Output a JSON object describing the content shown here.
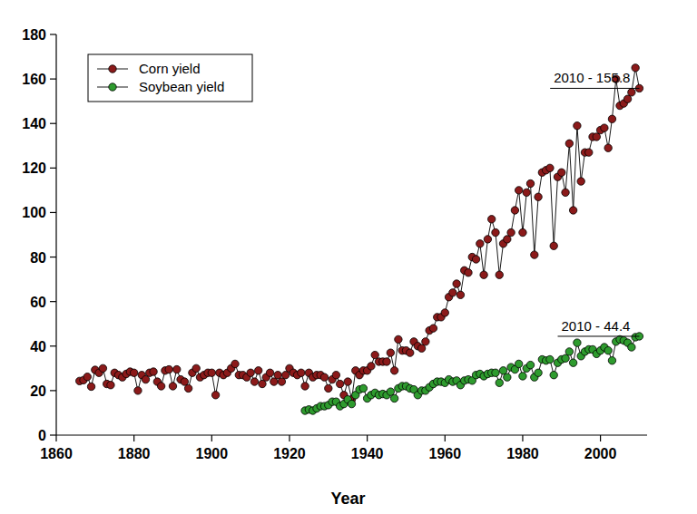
{
  "chart_data": {
    "type": "line",
    "x_label": "Year",
    "x": [
      1866,
      1867,
      1868,
      1869,
      1870,
      1871,
      1872,
      1873,
      1874,
      1875,
      1876,
      1877,
      1878,
      1879,
      1880,
      1881,
      1882,
      1883,
      1884,
      1885,
      1886,
      1887,
      1888,
      1889,
      1890,
      1891,
      1892,
      1893,
      1894,
      1895,
      1896,
      1897,
      1898,
      1899,
      1900,
      1901,
      1902,
      1903,
      1904,
      1905,
      1906,
      1907,
      1908,
      1909,
      1910,
      1911,
      1912,
      1913,
      1914,
      1915,
      1916,
      1917,
      1918,
      1919,
      1920,
      1921,
      1922,
      1923,
      1924,
      1925,
      1926,
      1927,
      1928,
      1929,
      1930,
      1931,
      1932,
      1933,
      1934,
      1935,
      1936,
      1937,
      1938,
      1939,
      1940,
      1941,
      1942,
      1943,
      1944,
      1945,
      1946,
      1947,
      1948,
      1949,
      1950,
      1951,
      1952,
      1953,
      1954,
      1955,
      1956,
      1957,
      1958,
      1959,
      1960,
      1961,
      1962,
      1963,
      1964,
      1965,
      1966,
      1967,
      1968,
      1969,
      1970,
      1971,
      1972,
      1973,
      1974,
      1975,
      1976,
      1977,
      1978,
      1979,
      1980,
      1981,
      1982,
      1983,
      1984,
      1985,
      1986,
      1987,
      1988,
      1989,
      1990,
      1991,
      1992,
      1993,
      1994,
      1995,
      1996,
      1997,
      1998,
      1999,
      2000,
      2001,
      2002,
      2003,
      2004,
      2005,
      2006,
      2007,
      2008,
      2009,
      2010
    ],
    "series": [
      {
        "name": "Corn yield",
        "color": "#8b1a1a",
        "marker": "circle",
        "line_style": "solid",
        "values": [
          24.3,
          24.7,
          26.2,
          21.8,
          29.3,
          28,
          30,
          23,
          22.5,
          28,
          27,
          26,
          27.5,
          28.5,
          28,
          20,
          27,
          25,
          28,
          28.5,
          24,
          22,
          29,
          29.5,
          22,
          29.5,
          25,
          24,
          21,
          28,
          30,
          26,
          27,
          28,
          28,
          18,
          28,
          27,
          28,
          30,
          32,
          27,
          27,
          26,
          28,
          24,
          29,
          23,
          26,
          28,
          24,
          27,
          24,
          27,
          30,
          28,
          27,
          28,
          22,
          28,
          26,
          27,
          27,
          26,
          21,
          25,
          27,
          23,
          18,
          24,
          16,
          29,
          27,
          29,
          29,
          31,
          36,
          33,
          33,
          33,
          37,
          29,
          43,
          38,
          38,
          37,
          42,
          40,
          39,
          42,
          47,
          48,
          53,
          53,
          55,
          62,
          64,
          68,
          63,
          74,
          73,
          80,
          79,
          86,
          72,
          88,
          97,
          91,
          72,
          86,
          88,
          91,
          101,
          110,
          91,
          109,
          113,
          81,
          107,
          118,
          119,
          120,
          85,
          116,
          118,
          109,
          131,
          101,
          139,
          114,
          127,
          127,
          134,
          134,
          137,
          138,
          129,
          142,
          160,
          148,
          149,
          151,
          154,
          165,
          155.8
        ]
      },
      {
        "name": "Soybean yield",
        "color": "#2e9b2e",
        "marker": "circle",
        "line_style": "solid",
        "values": [
          null,
          null,
          null,
          null,
          null,
          null,
          null,
          null,
          null,
          null,
          null,
          null,
          null,
          null,
          null,
          null,
          null,
          null,
          null,
          null,
          null,
          null,
          null,
          null,
          null,
          null,
          null,
          null,
          null,
          null,
          null,
          null,
          null,
          null,
          null,
          null,
          null,
          null,
          null,
          null,
          null,
          null,
          null,
          null,
          null,
          null,
          null,
          null,
          null,
          null,
          null,
          null,
          null,
          null,
          null,
          null,
          null,
          null,
          11,
          11.5,
          11,
          12,
          13,
          13,
          13.5,
          15,
          15,
          13,
          14,
          16,
          14,
          18,
          20.5,
          21,
          16.5,
          18,
          19,
          18,
          18.5,
          18,
          19.5,
          16.5,
          21,
          22,
          22,
          21,
          20.5,
          18,
          20,
          20,
          21.5,
          23,
          24,
          24,
          23.5,
          25,
          24,
          24.5,
          22.5,
          24.5,
          25,
          24.5,
          27,
          27.5,
          26.5,
          27.5,
          28,
          28,
          23.5,
          29,
          26,
          30.5,
          29.5,
          32,
          26.5,
          30,
          31.5,
          26,
          28,
          34,
          33.5,
          34,
          27,
          32.5,
          34,
          34.5,
          37.5,
          32.5,
          41.5,
          35.5,
          37.5,
          38.5,
          38.5,
          36.5,
          38,
          39.5,
          38,
          33.5,
          42,
          43,
          42.5,
          41.5,
          39.5,
          44,
          44.4
        ]
      }
    ],
    "xlim": [
      1860,
      2012
    ],
    "xticks": [
      1860,
      1880,
      1900,
      1920,
      1940,
      1960,
      1980,
      2000
    ],
    "ylim": [
      0,
      180
    ],
    "yticks": [
      0,
      20,
      40,
      60,
      80,
      100,
      120,
      140,
      160,
      180
    ],
    "grid": false,
    "legend": "upper left",
    "annotations": [
      {
        "text": "2010 - 155.8",
        "x": 2010,
        "y": 155.8
      },
      {
        "text": "2010 - 44.4",
        "x": 2010,
        "y": 44.4
      }
    ]
  }
}
